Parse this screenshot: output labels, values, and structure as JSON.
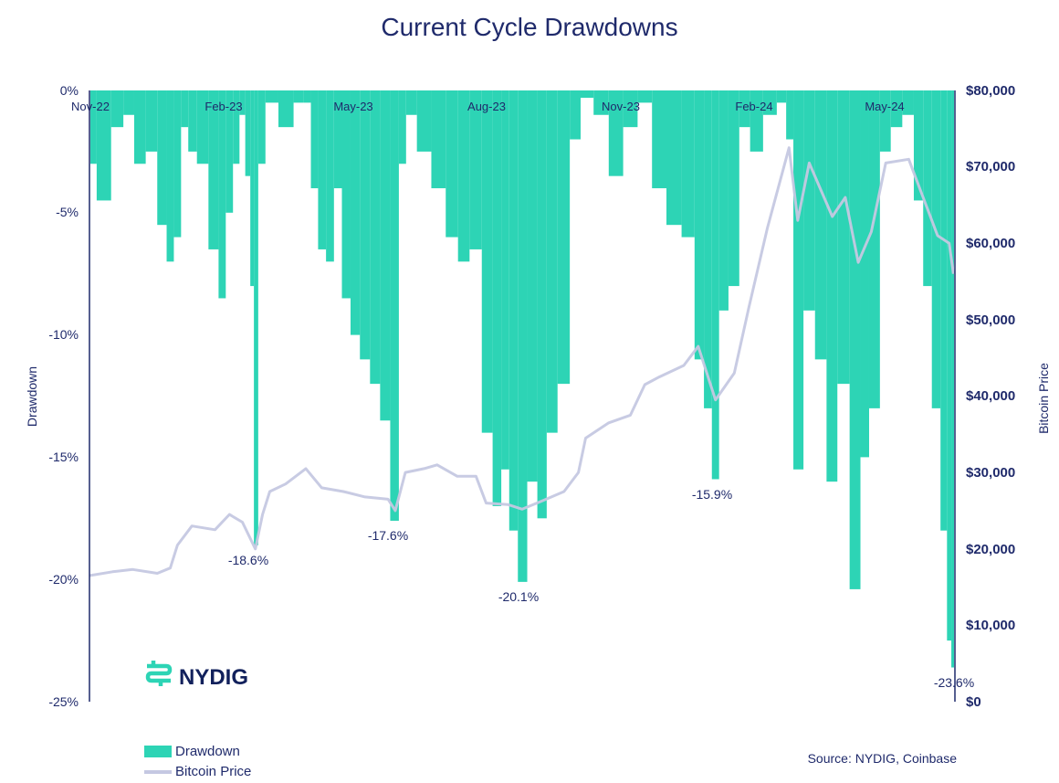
{
  "chart_data": {
    "type": "bar",
    "title": "Current Cycle Drawdowns",
    "ylabel": "Drawdown",
    "y2label": "Bitcoin Price",
    "ylim": [
      -25,
      0
    ],
    "y2lim": [
      0,
      80000
    ],
    "yticks": [
      "0%",
      "-5%",
      "-10%",
      "-15%",
      "-20%",
      "-25%"
    ],
    "y2ticks": [
      "$80,000",
      "$70,000",
      "$60,000",
      "$50,000",
      "$40,000",
      "$30,000",
      "$20,000",
      "$10,000",
      "$0"
    ],
    "xticks": [
      "Nov-22",
      "Feb-23",
      "May-23",
      "Aug-23",
      "Nov-23",
      "Feb-24",
      "May-24"
    ],
    "x_range": [
      "2022-11-15",
      "2024-07-07"
    ],
    "series": [
      {
        "name": "Drawdown",
        "color": "#2dd4b5",
        "type": "bar",
        "points": [
          [
            "2022-11-15",
            -3.0
          ],
          [
            "2022-11-25",
            -4.5
          ],
          [
            "2022-12-05",
            -1.5
          ],
          [
            "2022-12-12",
            -1.0
          ],
          [
            "2022-12-20",
            -3.0
          ],
          [
            "2022-12-28",
            -2.5
          ],
          [
            "2023-01-05",
            -5.5
          ],
          [
            "2023-01-10",
            -7.0
          ],
          [
            "2023-01-15",
            -6.0
          ],
          [
            "2023-01-20",
            -1.5
          ],
          [
            "2023-01-25",
            -2.5
          ],
          [
            "2023-02-01",
            -3.0
          ],
          [
            "2023-02-10",
            -6.5
          ],
          [
            "2023-02-15",
            -8.5
          ],
          [
            "2023-02-20",
            -5.0
          ],
          [
            "2023-02-25",
            -3.0
          ],
          [
            "2023-03-01",
            -1.0
          ],
          [
            "2023-03-05",
            -3.5
          ],
          [
            "2023-03-08",
            -8.0
          ],
          [
            "2023-03-10",
            -18.6
          ],
          [
            "2023-03-14",
            -3.0
          ],
          [
            "2023-03-20",
            -0.5
          ],
          [
            "2023-04-01",
            -1.5
          ],
          [
            "2023-04-10",
            -0.5
          ],
          [
            "2023-04-15",
            -0.5
          ],
          [
            "2023-04-20",
            -4.0
          ],
          [
            "2023-04-25",
            -6.5
          ],
          [
            "2023-05-01",
            -7.0
          ],
          [
            "2023-05-06",
            -4.0
          ],
          [
            "2023-05-12",
            -8.5
          ],
          [
            "2023-05-18",
            -10.0
          ],
          [
            "2023-05-25",
            -11.0
          ],
          [
            "2023-06-01",
            -12.0
          ],
          [
            "2023-06-08",
            -13.5
          ],
          [
            "2023-06-15",
            -17.6
          ],
          [
            "2023-06-20",
            -3.0
          ],
          [
            "2023-06-25",
            -1.0
          ],
          [
            "2023-07-05",
            -2.5
          ],
          [
            "2023-07-15",
            -4.0
          ],
          [
            "2023-07-25",
            -6.0
          ],
          [
            "2023-08-01",
            -7.0
          ],
          [
            "2023-08-10",
            -6.5
          ],
          [
            "2023-08-18",
            -14.0
          ],
          [
            "2023-08-25",
            -17.0
          ],
          [
            "2023-08-30",
            -15.5
          ],
          [
            "2023-09-05",
            -18.0
          ],
          [
            "2023-09-11",
            -20.1
          ],
          [
            "2023-09-18",
            -16.0
          ],
          [
            "2023-09-25",
            -17.5
          ],
          [
            "2023-10-01",
            -14.0
          ],
          [
            "2023-10-10",
            -12.0
          ],
          [
            "2023-10-18",
            -2.0
          ],
          [
            "2023-10-25",
            -0.3
          ],
          [
            "2023-11-05",
            -1.0
          ],
          [
            "2023-11-15",
            -3.5
          ],
          [
            "2023-11-25",
            -1.5
          ],
          [
            "2023-12-05",
            -0.5
          ],
          [
            "2023-12-15",
            -4.0
          ],
          [
            "2023-12-25",
            -5.5
          ],
          [
            "2024-01-05",
            -6.0
          ],
          [
            "2024-01-12",
            -11.0
          ],
          [
            "2024-01-18",
            -13.0
          ],
          [
            "2024-01-23",
            -15.9
          ],
          [
            "2024-01-28",
            -9.0
          ],
          [
            "2024-02-05",
            -8.0
          ],
          [
            "2024-02-12",
            -1.5
          ],
          [
            "2024-02-20",
            -2.5
          ],
          [
            "2024-03-01",
            -1.0
          ],
          [
            "2024-03-10",
            -0.5
          ],
          [
            "2024-03-14",
            -2.0
          ],
          [
            "2024-03-20",
            -15.5
          ],
          [
            "2024-03-28",
            -9.0
          ],
          [
            "2024-04-05",
            -11.0
          ],
          [
            "2024-04-13",
            -16.0
          ],
          [
            "2024-04-20",
            -12.0
          ],
          [
            "2024-04-30",
            -20.4
          ],
          [
            "2024-05-05",
            -15.0
          ],
          [
            "2024-05-12",
            -13.0
          ],
          [
            "2024-05-20",
            -2.5
          ],
          [
            "2024-05-27",
            -1.5
          ],
          [
            "2024-06-05",
            -1.0
          ],
          [
            "2024-06-12",
            -4.5
          ],
          [
            "2024-06-18",
            -8.0
          ],
          [
            "2024-06-24",
            -13.0
          ],
          [
            "2024-06-30",
            -18.0
          ],
          [
            "2024-07-03",
            -22.5
          ],
          [
            "2024-07-06",
            -23.6
          ]
        ]
      },
      {
        "name": "Bitcoin Price",
        "color": "#c5c8e2",
        "type": "line",
        "points": [
          [
            "2022-11-15",
            16500
          ],
          [
            "2022-12-01",
            17000
          ],
          [
            "2022-12-15",
            17300
          ],
          [
            "2023-01-01",
            16800
          ],
          [
            "2023-01-10",
            17500
          ],
          [
            "2023-01-15",
            20500
          ],
          [
            "2023-01-25",
            23000
          ],
          [
            "2023-02-10",
            22500
          ],
          [
            "2023-02-20",
            24500
          ],
          [
            "2023-03-01",
            23500
          ],
          [
            "2023-03-10",
            20000
          ],
          [
            "2023-03-15",
            24500
          ],
          [
            "2023-03-20",
            27500
          ],
          [
            "2023-03-31",
            28500
          ],
          [
            "2023-04-14",
            30500
          ],
          [
            "2023-04-25",
            28000
          ],
          [
            "2023-05-10",
            27500
          ],
          [
            "2023-05-25",
            26800
          ],
          [
            "2023-06-10",
            26500
          ],
          [
            "2023-06-15",
            25000
          ],
          [
            "2023-06-22",
            30000
          ],
          [
            "2023-07-05",
            30500
          ],
          [
            "2023-07-14",
            31000
          ],
          [
            "2023-07-28",
            29500
          ],
          [
            "2023-08-10",
            29500
          ],
          [
            "2023-08-17",
            26000
          ],
          [
            "2023-09-01",
            25800
          ],
          [
            "2023-09-11",
            25200
          ],
          [
            "2023-09-25",
            26300
          ],
          [
            "2023-10-10",
            27500
          ],
          [
            "2023-10-20",
            30000
          ],
          [
            "2023-10-25",
            34500
          ],
          [
            "2023-11-10",
            36500
          ],
          [
            "2023-11-25",
            37500
          ],
          [
            "2023-12-05",
            41500
          ],
          [
            "2023-12-15",
            42500
          ],
          [
            "2024-01-01",
            44000
          ],
          [
            "2024-01-11",
            46500
          ],
          [
            "2024-01-23",
            39500
          ],
          [
            "2024-02-05",
            43000
          ],
          [
            "2024-02-15",
            51500
          ],
          [
            "2024-02-28",
            62000
          ],
          [
            "2024-03-14",
            72500
          ],
          [
            "2024-03-20",
            63000
          ],
          [
            "2024-03-28",
            70500
          ],
          [
            "2024-04-13",
            63500
          ],
          [
            "2024-04-22",
            66000
          ],
          [
            "2024-05-01",
            57500
          ],
          [
            "2024-05-10",
            61500
          ],
          [
            "2024-05-20",
            70500
          ],
          [
            "2024-06-05",
            71000
          ],
          [
            "2024-06-15",
            66000
          ],
          [
            "2024-06-25",
            61000
          ],
          [
            "2024-07-03",
            60000
          ],
          [
            "2024-07-06",
            56000
          ]
        ]
      }
    ],
    "annotations": [
      {
        "label": "-18.6%",
        "date": "2023-03-10",
        "value": -18.6
      },
      {
        "label": "-17.6%",
        "date": "2023-06-15",
        "value": -17.6
      },
      {
        "label": "-20.1%",
        "date": "2023-09-11",
        "value": -20.1
      },
      {
        "label": "-15.9%",
        "date": "2024-01-23",
        "value": -15.9
      },
      {
        "label": "-23.6%",
        "date": "2024-07-06",
        "value": -23.6
      }
    ],
    "legend": {
      "position": "bottom-left",
      "items": [
        {
          "label": "Drawdown",
          "color": "#2dd4b5",
          "kind": "box"
        },
        {
          "label": "Bitcoin Price",
          "color": "#c5c8e2",
          "kind": "line"
        }
      ]
    },
    "source": "Source: NYDIG, Coinbase",
    "logo": {
      "text": "NYDIG",
      "icon": "nydig-logo-icon",
      "color": "#2dd4b5"
    }
  }
}
